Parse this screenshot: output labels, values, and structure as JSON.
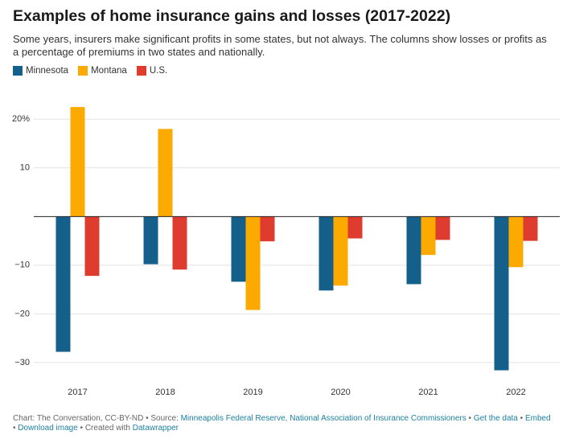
{
  "chart_data": {
    "type": "bar",
    "title": "Examples of home insurance gains and losses (2017-2022)",
    "subtitle": "Some years, insurers make significant profits in some states, but not always. The columns show losses or profits as a percentage of premiums in two states and nationally.",
    "categories": [
      "2017",
      "2018",
      "2019",
      "2020",
      "2021",
      "2022"
    ],
    "series": [
      {
        "name": "Minnesota",
        "color": "#15608b",
        "values": [
          -27.8,
          -9.8,
          -13.4,
          -15.2,
          -13.9,
          -31.6
        ]
      },
      {
        "name": "Montana",
        "color": "#fcaa00",
        "values": [
          22.5,
          18.0,
          -19.2,
          -14.2,
          -7.9,
          -10.4
        ]
      },
      {
        "name": "U.S.",
        "color": "#dd3c2e",
        "values": [
          -12.2,
          -10.9,
          -5.1,
          -4.5,
          -4.8,
          -5.0
        ]
      }
    ],
    "ylim": [
      -32,
      25
    ],
    "yticks": [
      {
        "value": 20,
        "label": "20%"
      },
      10,
      {
        "value": -10,
        "label": "−10"
      },
      {
        "value": -20,
        "label": "−20"
      },
      {
        "value": -30,
        "label": "−30"
      }
    ],
    "grid": true,
    "footer": [
      "Chart: The Conversation, CC-BY-ND • Source: ",
      "Minneapolis Federal Reserve, National Association of Insurance Commissioners",
      " • ",
      "Get the data",
      " • ",
      "Embed",
      " • ",
      "Download image",
      " • Created with ",
      "Datawrapper"
    ]
  }
}
